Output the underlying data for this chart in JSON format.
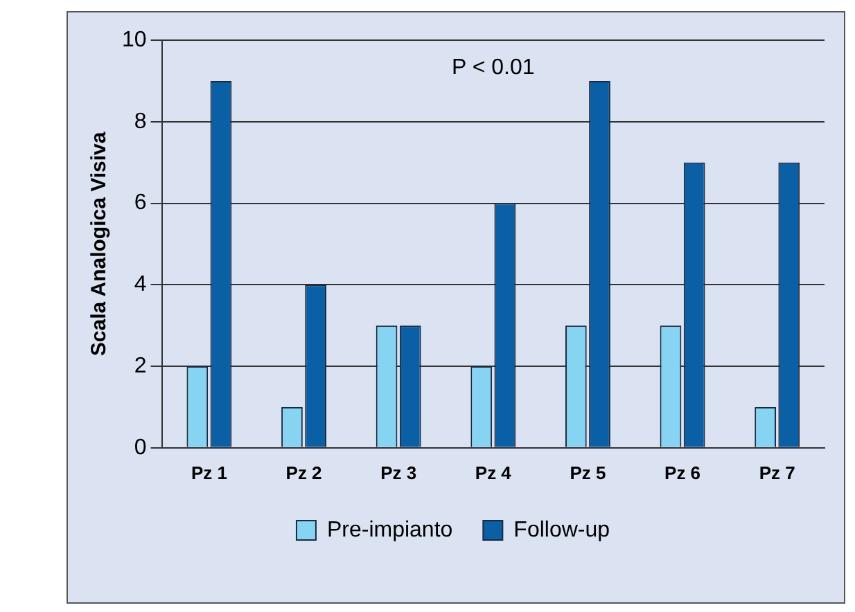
{
  "chart_data": {
    "type": "bar",
    "ylabel": "Scala Analogica Visiva",
    "categories": [
      "Pz 1",
      "Pz 2",
      "Pz 3",
      "Pz 4",
      "Pz 5",
      "Pz 6",
      "Pz 7"
    ],
    "series": [
      {
        "name": "Pre-impianto",
        "color": "#86d3f2",
        "values": [
          2,
          1,
          3,
          2,
          3,
          3,
          1
        ]
      },
      {
        "name": "Follow-up",
        "color": "#0b5fa5",
        "values": [
          9,
          4,
          3,
          6,
          9,
          7,
          7
        ]
      }
    ],
    "ylim": [
      0,
      10
    ],
    "yticks": [
      0,
      2,
      4,
      6,
      8,
      10
    ],
    "grid": "y",
    "legend": "bottom",
    "annotations": [
      "P < 0.01"
    ]
  }
}
